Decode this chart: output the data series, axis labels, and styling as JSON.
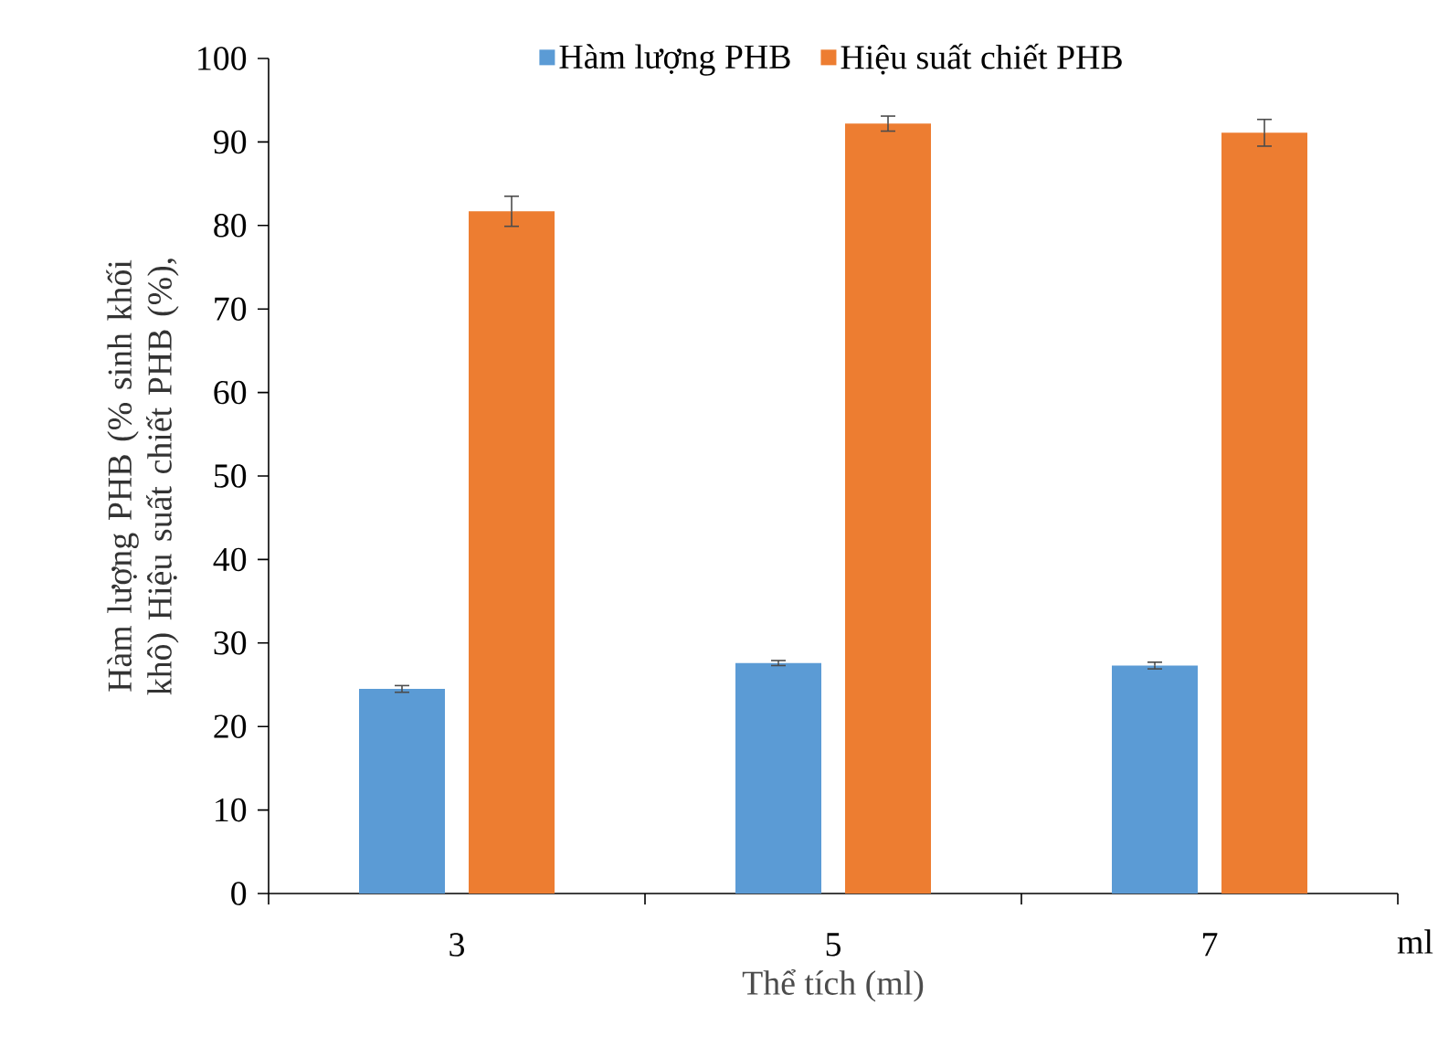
{
  "chart_data": {
    "type": "bar",
    "xlabel": "Thể tích (ml)",
    "ylabel": "Hàm lượng PHB (% sinh khối khô) Hiệu suất chiết PHB (%),",
    "categories": [
      "3",
      "5",
      "7"
    ],
    "series": [
      {
        "name": "Hàm lượng PHB",
        "color": "#5b9bd5",
        "values": [
          24.5,
          27.6,
          27.3
        ],
        "errors": [
          0.4,
          0.3,
          0.4
        ]
      },
      {
        "name": "Hiệu suất chiết PHB",
        "color": "#ed7d31",
        "values": [
          81.7,
          92.2,
          91.1
        ],
        "errors": [
          1.8,
          0.9,
          1.6
        ]
      }
    ],
    "ylim": [
      0,
      100
    ],
    "yticks": [
      0,
      10,
      20,
      30,
      40,
      50,
      60,
      70,
      80,
      90,
      100
    ],
    "legend": "top",
    "grid": false,
    "annotations": [
      "ml"
    ]
  }
}
